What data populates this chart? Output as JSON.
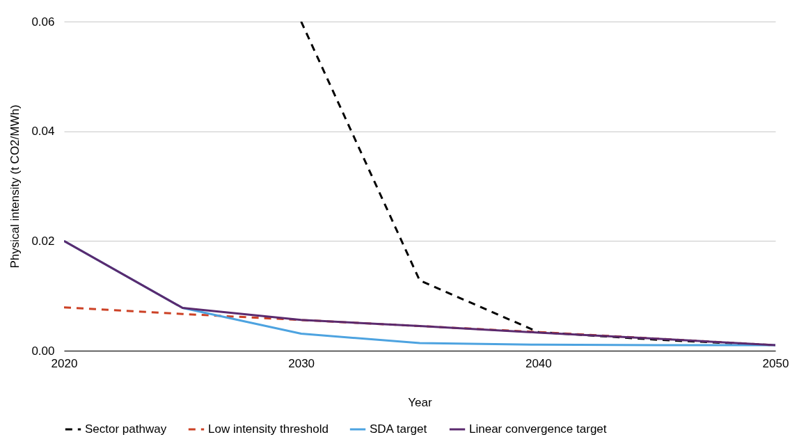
{
  "chart_data": {
    "type": "line",
    "xlabel": "Year",
    "ylabel": "Physical intensity (t CO2/MWh)",
    "x": [
      2020,
      2025,
      2030,
      2035,
      2040,
      2045,
      2050
    ],
    "series": [
      {
        "name": "Sector pathway",
        "color": "#000000",
        "line_style": "dashed",
        "x": [
          2030,
          2035,
          2040,
          2045,
          2050
        ],
        "values": [
          0.06,
          0.0128,
          0.0034,
          0.002,
          0.001
        ]
      },
      {
        "name": "Low intensity threshold",
        "color": "#cc4125",
        "line_style": "dashed",
        "values": [
          0.0079,
          0.0067,
          0.0056,
          0.0045,
          0.0034,
          0.0022,
          0.001
        ]
      },
      {
        "name": "SDA target",
        "color": "#4da3e0",
        "line_style": "solid",
        "values": [
          0.02,
          0.0078,
          0.0031,
          0.0014,
          0.0011,
          0.001,
          0.001
        ]
      },
      {
        "name": "Linear convergence target",
        "color": "#5b2a6e",
        "line_style": "solid",
        "values": [
          0.02,
          0.0078,
          0.0056,
          0.0045,
          0.0033,
          0.0022,
          0.001
        ]
      }
    ],
    "xlim": [
      2020,
      2050
    ],
    "xticks": [
      2020,
      2030,
      2040,
      2050
    ],
    "ylim": [
      0,
      0.06
    ],
    "yticks": [
      {
        "value": 0,
        "label": "0.00"
      },
      {
        "value": 0.02,
        "label": "0.02"
      },
      {
        "value": 0.04,
        "label": "0.04"
      },
      {
        "value": 0.06,
        "label": "0.06"
      }
    ],
    "grid": "y",
    "legend": "bottom"
  }
}
